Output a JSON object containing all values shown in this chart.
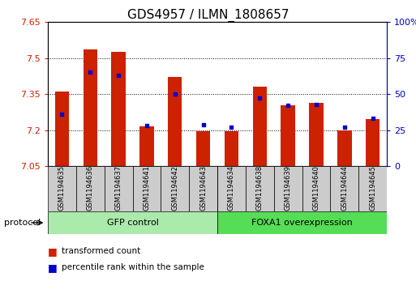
{
  "title": "GDS4957 / ILMN_1808657",
  "samples": [
    "GSM1194635",
    "GSM1194636",
    "GSM1194637",
    "GSM1194641",
    "GSM1194642",
    "GSM1194643",
    "GSM1194634",
    "GSM1194638",
    "GSM1194639",
    "GSM1194640",
    "GSM1194644",
    "GSM1194645"
  ],
  "transformed_counts": [
    7.36,
    7.535,
    7.525,
    7.215,
    7.42,
    7.195,
    7.195,
    7.38,
    7.305,
    7.315,
    7.2,
    7.245
  ],
  "percentile_ranks": [
    36,
    65,
    63,
    28,
    50,
    29,
    27,
    47,
    42,
    43,
    27,
    33
  ],
  "y_min": 7.05,
  "y_max": 7.65,
  "y_ticks": [
    7.05,
    7.2,
    7.35,
    7.5,
    7.65
  ],
  "y2_ticks": [
    0,
    25,
    50,
    75,
    100
  ],
  "bar_color": "#cc2200",
  "dot_color": "#0000cc",
  "groups": [
    {
      "label": "GFP control",
      "start": 0,
      "end": 6,
      "color": "#aaeaaa"
    },
    {
      "label": "FOXA1 overexpression",
      "start": 6,
      "end": 12,
      "color": "#55dd55"
    }
  ],
  "group_box_color": "#cccccc",
  "legend_bar_label": "transformed count",
  "legend_dot_label": "percentile rank within the sample",
  "protocol_label": "protocol",
  "title_fontsize": 11,
  "tick_fontsize": 8,
  "bar_width": 0.5
}
